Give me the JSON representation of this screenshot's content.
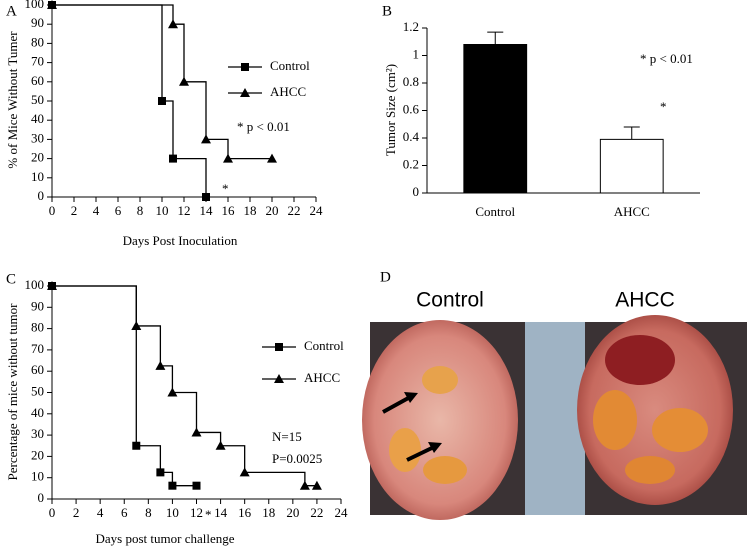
{
  "chart_data": [
    {
      "type": "line",
      "step": true,
      "panel": "A",
      "x_label": "Days Post Inoculation",
      "y_label": "% of Mice Without Tumer",
      "xlim": [
        0,
        24
      ],
      "xticks": [
        0,
        2,
        4,
        6,
        8,
        10,
        12,
        14,
        16,
        18,
        20,
        22,
        24
      ],
      "ylim": [
        0,
        100
      ],
      "yticks": [
        0,
        10,
        20,
        30,
        40,
        50,
        60,
        70,
        80,
        90,
        100
      ],
      "legend": "right",
      "series": [
        {
          "name": "Control",
          "color": "#000000",
          "marker": "square",
          "x": [
            0,
            10,
            11,
            14
          ],
          "values": [
            100,
            50,
            20,
            0
          ]
        },
        {
          "name": "AHCC",
          "color": "#000000",
          "marker": "triangle",
          "x": [
            0,
            11,
            12,
            14,
            16,
            20
          ],
          "values": [
            100,
            90,
            60,
            30,
            20,
            20
          ]
        }
      ],
      "annotations": [
        "* p < 0.01",
        "*"
      ]
    },
    {
      "type": "bar",
      "panel": "B",
      "y_label": "Tumor Size (cm²)",
      "categories": [
        "Control",
        "AHCC"
      ],
      "values": [
        1.08,
        0.39
      ],
      "errors": [
        0.09,
        0.09
      ],
      "colors": [
        "#000000",
        "#ffffff"
      ],
      "ylim": [
        0,
        1.2
      ],
      "yticks": [
        0,
        0.2,
        0.4,
        0.6,
        0.8,
        1,
        1.2
      ],
      "annotations": [
        "* p < 0.01",
        "*"
      ]
    },
    {
      "type": "line",
      "step": true,
      "panel": "C",
      "x_label": "Days post tumor challenge",
      "y_label": "Percentage of mice without tumor",
      "xlim": [
        0,
        24
      ],
      "xticks": [
        0,
        2,
        4,
        6,
        8,
        10,
        12,
        14,
        16,
        18,
        20,
        22,
        24
      ],
      "ylim": [
        0,
        100
      ],
      "yticks": [
        0,
        10,
        20,
        30,
        40,
        50,
        60,
        70,
        80,
        90,
        100
      ],
      "legend": "right",
      "series": [
        {
          "name": "Control",
          "color": "#000000",
          "marker": "square",
          "x": [
            0,
            7,
            9,
            10,
            12
          ],
          "values": [
            100,
            25,
            12.5,
            6.25,
            6.25
          ]
        },
        {
          "name": "AHCC",
          "color": "#000000",
          "marker": "triangle",
          "x": [
            0,
            7,
            9,
            10,
            12,
            14,
            16,
            21,
            22
          ],
          "values": [
            100,
            81.25,
            62.5,
            50,
            31.25,
            25,
            12.5,
            6.25,
            6.25
          ]
        }
      ],
      "annotations": [
        "N=15",
        "P=0.0025",
        "*"
      ]
    }
  ],
  "photo": {
    "panel": "D",
    "labels": [
      "Control",
      "AHCC"
    ]
  }
}
